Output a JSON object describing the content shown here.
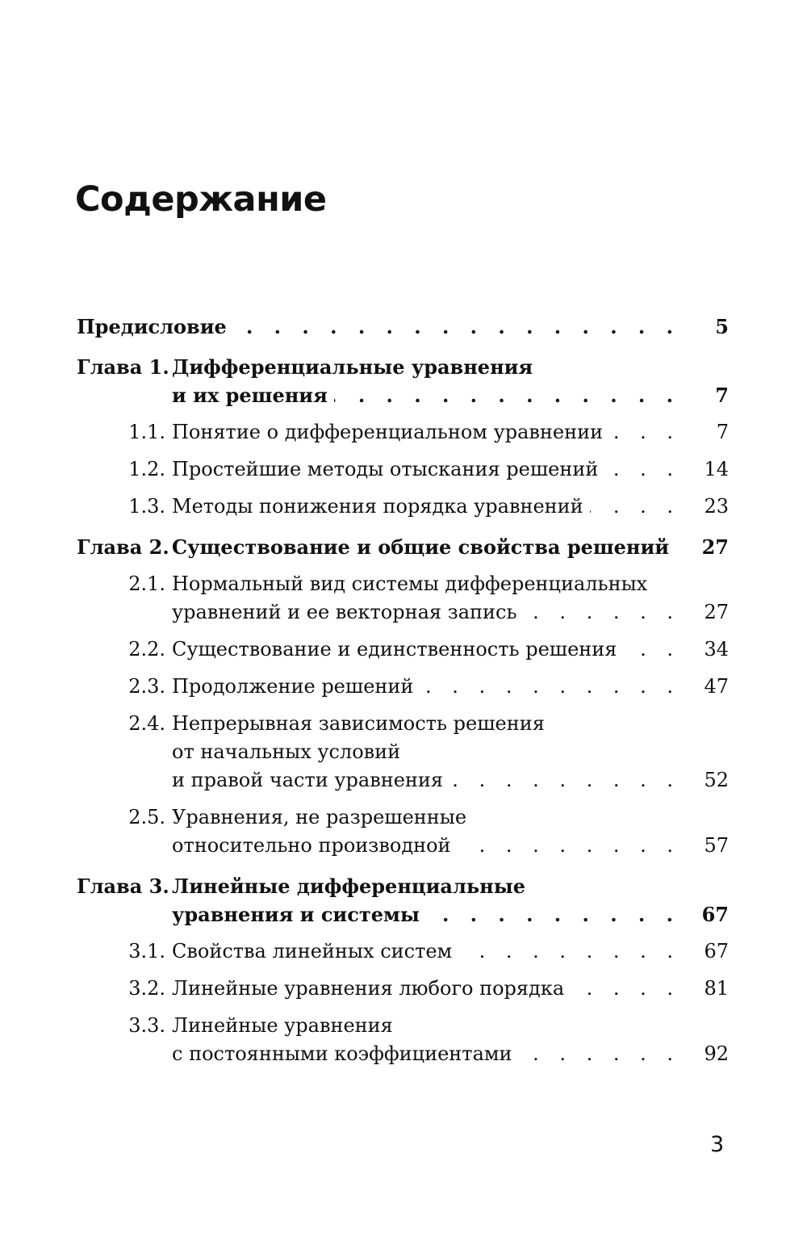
{
  "title": "Содержание",
  "page_number": "3",
  "entries": [
    {
      "num": "",
      "lines": [
        "Предисловие"
      ],
      "page": "5",
      "chapter": true
    },
    {
      "num": "Глава 1.",
      "lines": [
        "Дифференциальные уравнения",
        "и их решения"
      ],
      "page": "7",
      "chapter": true
    },
    {
      "num": "1.1.",
      "lines": [
        "Понятие о дифференциальном уравнении"
      ],
      "page": "7",
      "chapter": false
    },
    {
      "num": "1.2.",
      "lines": [
        "Простейшие методы отыскания решений"
      ],
      "page": "14",
      "chapter": false
    },
    {
      "num": "1.3.",
      "lines": [
        "Методы понижения порядка уравнений"
      ],
      "page": "23",
      "chapter": false
    },
    {
      "num": "Глава 2.",
      "lines": [
        "Существование и общие свойства решений"
      ],
      "page": "27",
      "chapter": true
    },
    {
      "num": "2.1.",
      "lines": [
        "Нормальный вид системы дифференциальных",
        "уравнений и ее векторная запись"
      ],
      "page": "27",
      "chapter": false
    },
    {
      "num": "2.2.",
      "lines": [
        "Существование и единственность решения"
      ],
      "page": "34",
      "chapter": false
    },
    {
      "num": "2.3.",
      "lines": [
        "Продолжение решений"
      ],
      "page": "47",
      "chapter": false
    },
    {
      "num": "2.4.",
      "lines": [
        "Непрерывная зависимость решения",
        "от начальных условий",
        "и правой части уравнения"
      ],
      "page": "52",
      "chapter": false
    },
    {
      "num": "2.5.",
      "lines": [
        "Уравнения, не разрешенные",
        "относительно производной"
      ],
      "page": "57",
      "chapter": false
    },
    {
      "num": "Глава 3.",
      "lines": [
        "Линейные дифференциальные",
        "уравнения и системы"
      ],
      "page": "67",
      "chapter": true
    },
    {
      "num": "3.1.",
      "lines": [
        "Свойства линейных систем"
      ],
      "page": "67",
      "chapter": false
    },
    {
      "num": "3.2.",
      "lines": [
        "Линейные уравнения любого порядка"
      ],
      "page": "81",
      "chapter": false
    },
    {
      "num": "3.3.",
      "lines": [
        "Линейные уравнения",
        "с постоянными коэффициентами"
      ],
      "page": "92",
      "chapter": false
    }
  ]
}
